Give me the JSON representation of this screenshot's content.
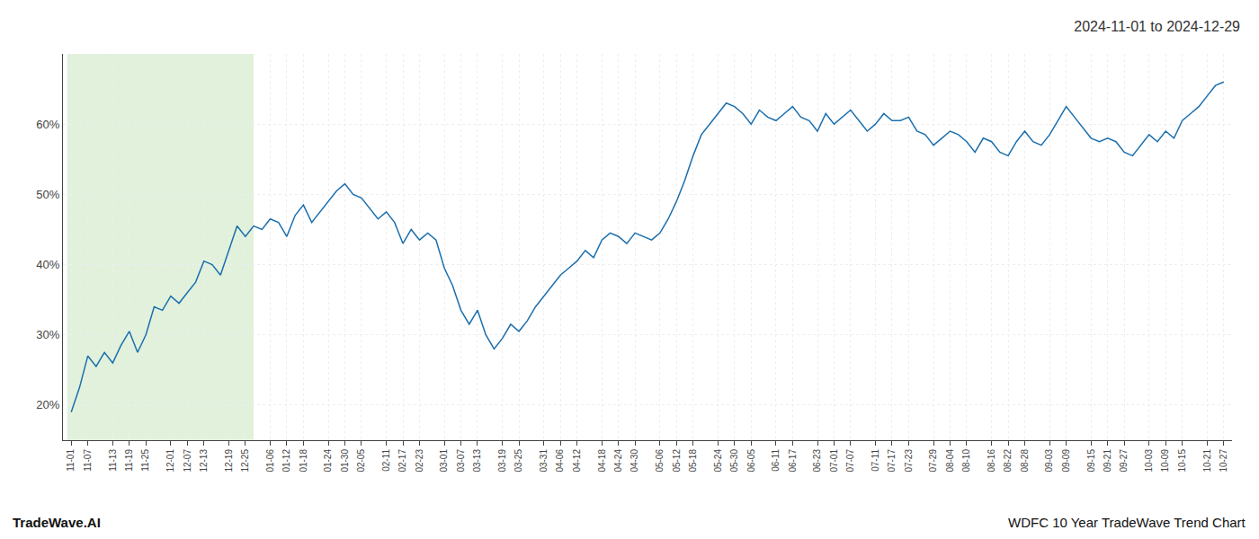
{
  "chart_data": {
    "type": "line",
    "title": "2024-11-01 to 2024-12-29",
    "annotations": [
      {
        "text": "TradeWave.AI"
      },
      {
        "text": "WDFC 10 Year TradeWave Trend Chart"
      }
    ],
    "categories": [
      "11-01",
      null,
      "11-07",
      null,
      null,
      "11-13",
      null,
      "11-19",
      null,
      "11-25",
      null,
      null,
      "12-01",
      null,
      "12-07",
      null,
      "12-13",
      null,
      null,
      "12-19",
      null,
      "12-25",
      null,
      null,
      "01-06",
      null,
      "01-12",
      null,
      "01-18",
      null,
      null,
      "01-24",
      null,
      "01-30",
      null,
      "02-05",
      null,
      null,
      "02-11",
      null,
      "02-17",
      null,
      "02-23",
      null,
      null,
      "03-01",
      null,
      "03-07",
      null,
      "03-13",
      null,
      null,
      "03-19",
      null,
      "03-25",
      null,
      null,
      "03-31",
      null,
      "04-06",
      null,
      "04-12",
      null,
      null,
      "04-18",
      null,
      "04-24",
      null,
      "04-30",
      null,
      null,
      "05-06",
      null,
      "05-12",
      null,
      "05-18",
      null,
      null,
      "05-24",
      null,
      "05-30",
      null,
      "06-05",
      null,
      null,
      "06-11",
      null,
      "06-17",
      null,
      null,
      "06-23",
      null,
      "07-01",
      null,
      "07-07",
      null,
      null,
      "07-11",
      null,
      "07-17",
      null,
      "07-23",
      null,
      null,
      "07-29",
      null,
      "08-04",
      null,
      "08-10",
      null,
      null,
      "08-16",
      null,
      "08-22",
      null,
      "08-28",
      null,
      null,
      "09-03",
      null,
      "09-09",
      null,
      null,
      "09-15",
      null,
      "09-21",
      null,
      "09-27",
      null,
      null,
      "10-03",
      null,
      "10-09",
      null,
      "10-15",
      null,
      null,
      "10-21",
      null,
      "10-27"
    ],
    "values": [
      19.0,
      22.5,
      27.0,
      25.5,
      27.5,
      26.0,
      28.5,
      30.5,
      27.5,
      30.0,
      34.0,
      33.5,
      35.5,
      34.5,
      36.0,
      37.5,
      40.5,
      40.0,
      38.5,
      42.0,
      45.5,
      44.0,
      45.5,
      45.0,
      46.5,
      46.0,
      44.0,
      47.0,
      48.5,
      46.0,
      47.5,
      49.0,
      50.5,
      51.5,
      50.0,
      49.5,
      48.0,
      46.5,
      47.5,
      46.0,
      43.0,
      45.0,
      43.5,
      44.5,
      43.5,
      39.5,
      37.0,
      33.5,
      31.5,
      33.5,
      30.0,
      28.0,
      29.5,
      31.5,
      30.5,
      32.0,
      34.0,
      35.5,
      37.0,
      38.5,
      39.5,
      40.5,
      42.0,
      41.0,
      43.5,
      44.5,
      44.0,
      43.0,
      44.5,
      44.0,
      43.5,
      44.5,
      46.5,
      49.0,
      52.0,
      55.5,
      58.5,
      60.0,
      61.5,
      63.0,
      62.5,
      61.5,
      60.0,
      62.0,
      61.0,
      60.5,
      61.5,
      62.5,
      61.0,
      60.5,
      59.0,
      61.5,
      60.0,
      61.0,
      62.0,
      60.5,
      59.0,
      60.0,
      61.5,
      60.5,
      60.5,
      61.0,
      59.0,
      58.5,
      57.0,
      58.0,
      59.0,
      58.5,
      57.5,
      56.0,
      58.0,
      57.5,
      56.0,
      55.5,
      57.5,
      59.0,
      57.5,
      57.0,
      58.5,
      60.5,
      62.5,
      61.0,
      59.5,
      58.0,
      57.5,
      58.0,
      57.5,
      56.0,
      55.5,
      57.0,
      58.5,
      57.5,
      59.0,
      58.0,
      60.5,
      61.5,
      62.5,
      64.0,
      65.5,
      66.0
    ],
    "color": "#1c6fad",
    "highlight": {
      "start": "11-01",
      "end": "12-25",
      "color": "#c8e6c0"
    },
    "ylim": [
      15,
      70
    ],
    "yticks": [
      {
        "value": 20,
        "label": "20%"
      },
      {
        "value": 30,
        "label": "30%"
      },
      {
        "value": 40,
        "label": "40%"
      },
      {
        "value": 50,
        "label": "50%"
      },
      {
        "value": 60,
        "label": "60%"
      }
    ],
    "grid": true
  }
}
